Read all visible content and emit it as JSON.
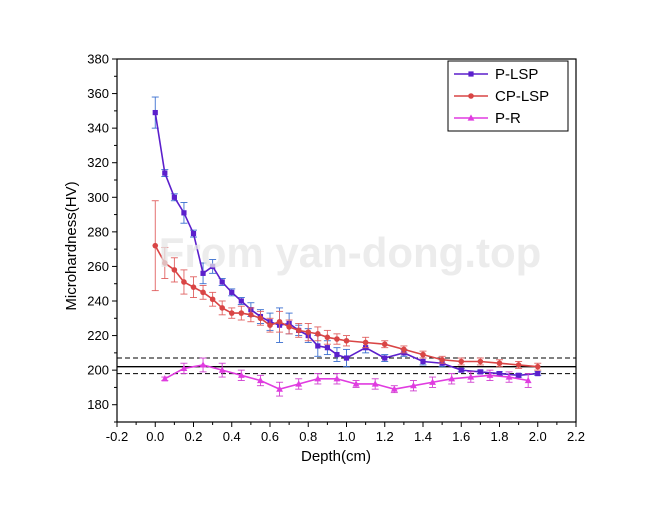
{
  "watermark": "From yan-dong.top",
  "chart_data": {
    "type": "line",
    "xlabel": "Depth(cm)",
    "ylabel": "Microhardness(HV)",
    "xlim": [
      -0.2,
      2.2
    ],
    "ylim": [
      170,
      380
    ],
    "xticks": [
      "-0.2",
      "0.0",
      "0.2",
      "0.4",
      "0.6",
      "0.8",
      "1.0",
      "1.2",
      "1.4",
      "1.6",
      "1.8",
      "2.0",
      "2.2"
    ],
    "yticks": [
      "180",
      "200",
      "220",
      "240",
      "260",
      "280",
      "300",
      "320",
      "340",
      "360",
      "380"
    ],
    "legend_position": "top-right",
    "reference_lines": [
      {
        "y": 202,
        "style": "solid"
      },
      {
        "y": 207,
        "style": "dashed"
      },
      {
        "y": 198,
        "style": "dashed"
      }
    ],
    "series": [
      {
        "name": "P-LSP",
        "color": "#5b1fcc",
        "marker": "square",
        "x": [
          0.0,
          0.05,
          0.1,
          0.15,
          0.2,
          0.25,
          0.3,
          0.35,
          0.4,
          0.45,
          0.5,
          0.55,
          0.6,
          0.65,
          0.7,
          0.75,
          0.8,
          0.85,
          0.9,
          0.95,
          1.0,
          1.1,
          1.2,
          1.3,
          1.4,
          1.5,
          1.6,
          1.7,
          1.8,
          1.9,
          2.0
        ],
        "y": [
          349,
          314,
          300,
          291,
          279,
          256,
          260,
          251,
          245,
          240,
          235,
          231,
          228,
          226,
          227,
          223,
          220,
          214,
          213,
          209,
          207,
          213,
          207,
          210,
          205,
          204,
          200,
          199,
          198,
          197,
          198
        ],
        "err": [
          9,
          2,
          2,
          6,
          2,
          6,
          4,
          2,
          2,
          2,
          4,
          4,
          5,
          10,
          6,
          3,
          4,
          6,
          4,
          4,
          5,
          3,
          2,
          2,
          2,
          2,
          1,
          1,
          1,
          1,
          1
        ]
      },
      {
        "name": "CP-LSP",
        "color": "#d94545",
        "marker": "circle",
        "x": [
          0.0,
          0.05,
          0.1,
          0.15,
          0.2,
          0.25,
          0.3,
          0.35,
          0.4,
          0.45,
          0.5,
          0.55,
          0.6,
          0.65,
          0.7,
          0.75,
          0.8,
          0.85,
          0.9,
          0.95,
          1.0,
          1.1,
          1.2,
          1.3,
          1.4,
          1.5,
          1.6,
          1.7,
          1.8,
          1.9,
          2.0
        ],
        "y": [
          272,
          262,
          258,
          251,
          248,
          245,
          241,
          236,
          233,
          233,
          232,
          230,
          226,
          228,
          225,
          223,
          222,
          221,
          219,
          218,
          217,
          216,
          215,
          212,
          209,
          206,
          205,
          205,
          204,
          203,
          202
        ],
        "err": [
          26,
          9,
          7,
          7,
          6,
          4,
          4,
          4,
          3,
          4,
          4,
          4,
          4,
          6,
          4,
          4,
          5,
          4,
          4,
          3,
          3,
          3,
          2,
          2,
          2,
          2,
          2,
          2,
          2,
          2,
          2
        ]
      },
      {
        "name": "P-R",
        "color": "#e03ce0",
        "marker": "triangle",
        "x": [
          0.05,
          0.15,
          0.25,
          0.35,
          0.45,
          0.55,
          0.65,
          0.75,
          0.85,
          0.95,
          1.05,
          1.15,
          1.25,
          1.35,
          1.45,
          1.55,
          1.65,
          1.75,
          1.85,
          1.95
        ],
        "y": [
          195,
          201,
          203,
          200,
          197,
          194,
          189,
          192,
          195,
          195,
          192,
          192,
          189,
          191,
          193,
          195,
          196,
          197,
          196,
          194
        ],
        "err": [
          1,
          3,
          4,
          4,
          3,
          3,
          4,
          3,
          3,
          3,
          2,
          3,
          2,
          3,
          3,
          3,
          3,
          3,
          3,
          4
        ]
      }
    ]
  }
}
